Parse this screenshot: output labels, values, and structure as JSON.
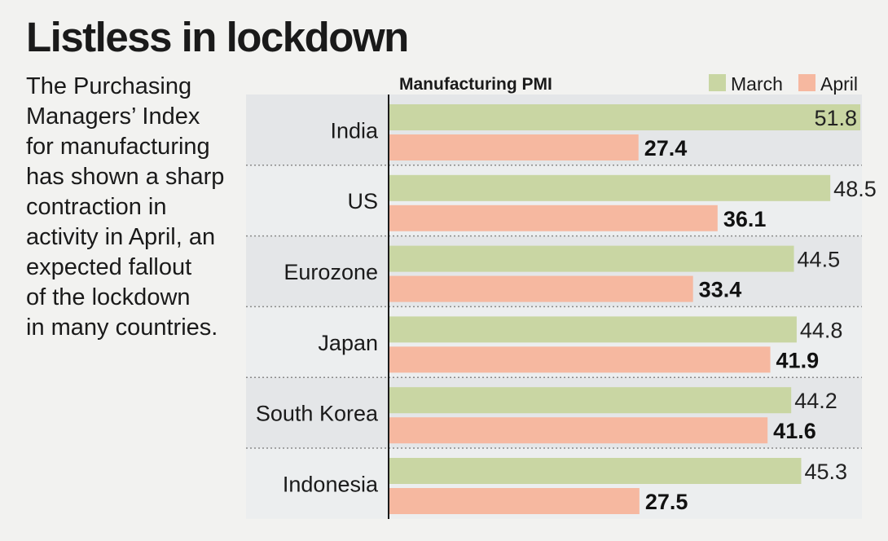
{
  "headline": "Listless in lockdown",
  "description_lines": [
    "The Purchasing",
    "Managers’ Index",
    "for manufacturing",
    "has shown a sharp",
    "contraction in",
    "activity in April, an",
    "expected fallout",
    "of the lockdown",
    "in many countries."
  ],
  "chart_data": {
    "type": "bar",
    "orientation": "horizontal",
    "title": "Manufacturing PMI",
    "categories": [
      "India",
      "US",
      "Eurozone",
      "Japan",
      "South Korea",
      "Indonesia"
    ],
    "series": [
      {
        "name": "March",
        "color": "#c9d6a3",
        "values": [
          51.8,
          48.5,
          44.5,
          44.8,
          44.2,
          45.3
        ]
      },
      {
        "name": "April",
        "color": "#f6b8a0",
        "values": [
          27.4,
          36.1,
          33.4,
          41.9,
          41.6,
          27.5
        ]
      }
    ],
    "xlim": [
      0,
      51.8
    ],
    "legend_position": "top-right",
    "grid": false
  }
}
